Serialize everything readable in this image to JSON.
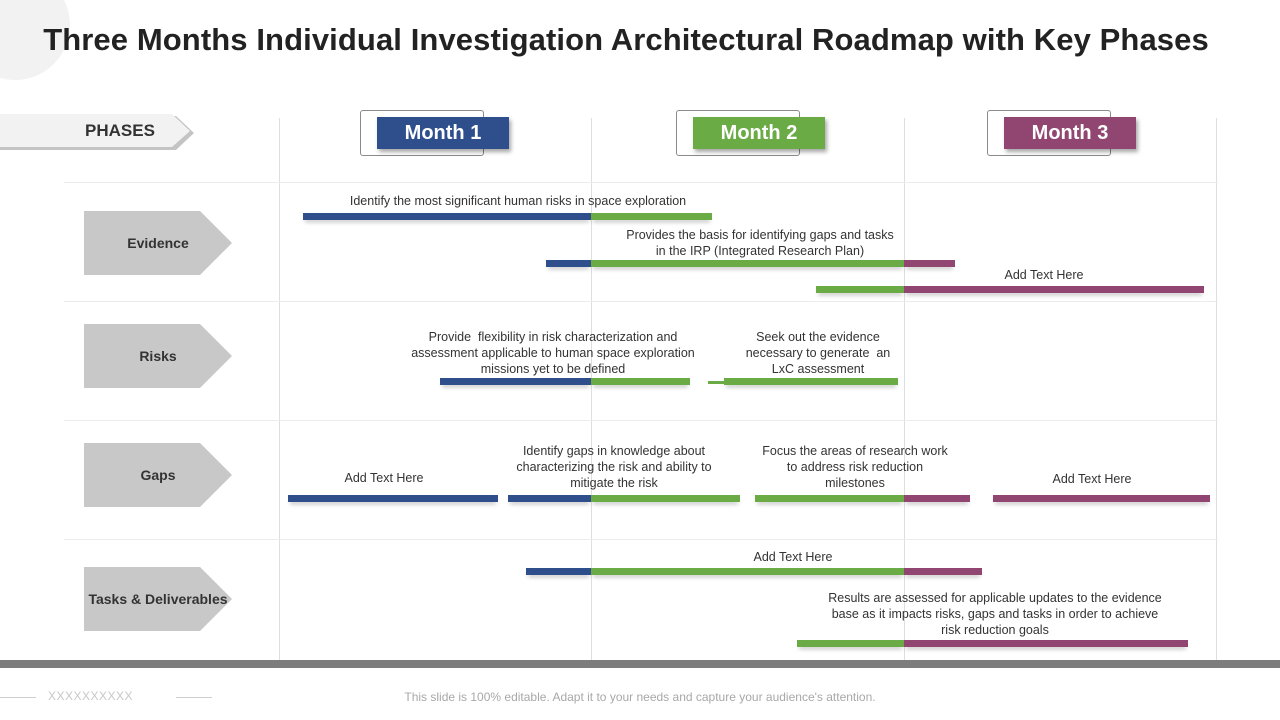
{
  "title": "Three Months Individual Investigation Architectural Roadmap with Key Phases",
  "phases_label": "PHASES",
  "months": [
    {
      "label": "Month 1",
      "color": "#2e4f8c"
    },
    {
      "label": "Month 2",
      "color": "#6aab46"
    },
    {
      "label": "Month 3",
      "color": "#914671"
    }
  ],
  "rows": [
    {
      "label": "Evidence"
    },
    {
      "label": "Risks"
    },
    {
      "label": "Gaps"
    },
    {
      "label": "Tasks & Deliverables"
    }
  ],
  "captions": {
    "evidence_1": "Identify the most significant human risks in space exploration",
    "evidence_2": "Provides the basis for identifying gaps and tasks\nin the IRP (Integrated Research Plan)",
    "evidence_3": "Add Text Here",
    "risks_1": "Provide  flexibility in risk characterization and\nassessment applicable to human space exploration\nmissions yet to be defined",
    "risks_2": "Seek out the evidence\nnecessary to generate  an\nLxC assessment",
    "gaps_1": "Add Text Here",
    "gaps_2": "Identify gaps in knowledge about\ncharacterizing the risk and ability to\nmitigate the risk",
    "gaps_3": "Focus the areas of research work\nto address risk reduction\nmilestones",
    "gaps_4": "Add Text Here",
    "tasks_1": "Add Text Here",
    "tasks_2": "Results are assessed for applicable updates to the evidence\nbase as it impacts risks, gaps and tasks in order to achieve\nrisk reduction goals"
  },
  "footer": {
    "placeholder": "XXXXXXXXXX",
    "note": "This slide is 100% editable. Adapt it to your needs and capture your audience's attention."
  },
  "colors": {
    "month1": "#2e4f8c",
    "month2": "#6aab46",
    "month3": "#914671",
    "phase_arrow": "#c8c8c8"
  }
}
